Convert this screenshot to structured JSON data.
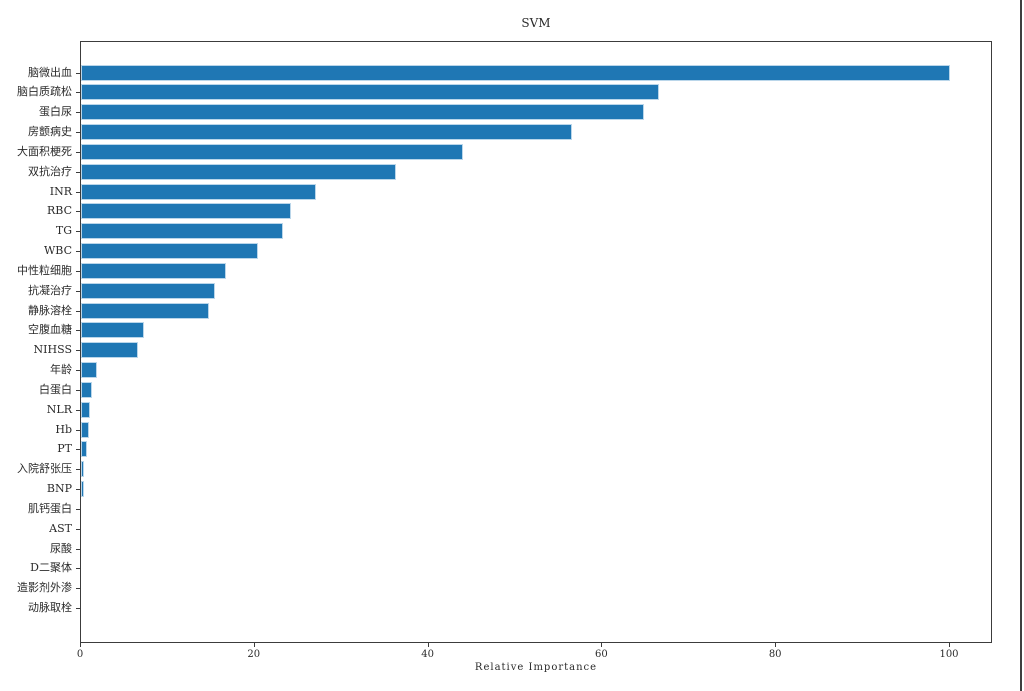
{
  "window": {
    "background": "#ffffff",
    "right_edge_color": "#3f3f3f"
  },
  "chart_data": {
    "type": "bar",
    "orientation": "horizontal",
    "title": "SVM",
    "xlabel": "Relative Importance",
    "ylabel": "",
    "categories": [
      "脑微出血",
      "脑白质疏松",
      "蛋白尿",
      "房颤病史",
      "大面积梗死",
      "双抗治疗",
      "INR",
      "RBC",
      "TG",
      "WBC",
      "中性粒细胞",
      "抗凝治疗",
      "静脉溶栓",
      "空腹血糖",
      "NIHSS",
      "年龄",
      "白蛋白",
      "NLR",
      "Hb",
      "PT",
      "入院舒张压",
      "BNP",
      "肌钙蛋白",
      "AST",
      "尿酸",
      "D二聚体",
      "造影剂外渗",
      "动脉取栓"
    ],
    "values": [
      100,
      66.5,
      64.8,
      56.5,
      44.0,
      36.3,
      27.0,
      24.2,
      23.3,
      20.4,
      16.7,
      15.4,
      14.7,
      7.2,
      6.6,
      1.8,
      1.3,
      1.0,
      0.9,
      0.7,
      0.3,
      0.4,
      0,
      0,
      0,
      0,
      0,
      0
    ],
    "xticks": [
      0,
      20,
      40,
      60,
      80,
      100
    ],
    "xlim": [
      0,
      105
    ],
    "grid": false,
    "legend": "none",
    "bar_color": "#1f77b4",
    "bar_edge_color": "#bad6ea",
    "spine_color": "#3c3c3c"
  }
}
